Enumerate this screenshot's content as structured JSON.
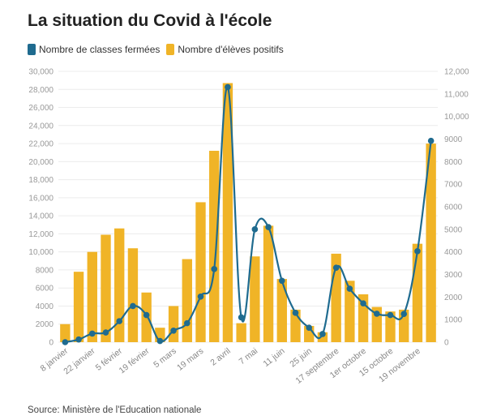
{
  "title": "La situation du Covid à l'école",
  "source": "Source: Ministère de l'Education nationale",
  "colors": {
    "line": "#1f6b8f",
    "bar": "#f0b427"
  },
  "chart_data": {
    "type": "bar",
    "title": "La situation du Covid à l'école",
    "legend_placement": "top-left",
    "grid": true,
    "x_tick_labels": [
      "8 janvier",
      "22 janvier",
      "5 février",
      "19 février",
      "5 mars",
      "19 mars",
      "2 avril",
      "7 mai",
      "11 juin",
      "25 juin",
      "17 septembre",
      "1er octobre",
      "15 octobre",
      "19 novembre"
    ],
    "x_tick_indices": [
      0,
      2,
      4,
      6,
      8,
      10,
      12,
      14,
      16,
      18,
      20,
      22,
      24,
      26
    ],
    "y_left_lim": [
      0,
      30000
    ],
    "y_left_ticks": [
      "0",
      "2000",
      "4000",
      "6000",
      "8000",
      "10,000",
      "12,000",
      "14,000",
      "16,000",
      "18,000",
      "20,000",
      "22,000",
      "24,000",
      "26,000",
      "28,000",
      "30,000"
    ],
    "y_right_lim": [
      0,
      12000
    ],
    "y_right_ticks": [
      "0",
      "1000",
      "2000",
      "3000",
      "4000",
      "5000",
      "6000",
      "7000",
      "8000",
      "9000",
      "10,000",
      "11,000",
      "12,000"
    ],
    "series": [
      {
        "name": "Nombre d'élèves positifs",
        "type": "bar",
        "axis": "left",
        "values": [
          2000,
          7800,
          10000,
          11900,
          12600,
          10400,
          5500,
          1600,
          4000,
          9200,
          15500,
          21200,
          28700,
          2100,
          9500,
          12900,
          7000,
          3600,
          1800,
          1100,
          9800,
          6800,
          5300,
          3900,
          3400,
          3600,
          10900,
          22000
        ]
      },
      {
        "name": "Nombre de classes fermées",
        "type": "line",
        "axis": "right",
        "values": [
          0,
          120,
          380,
          430,
          930,
          1600,
          1200,
          50,
          510,
          840,
          2020,
          3240,
          11300,
          1100,
          5000,
          5100,
          2720,
          1300,
          640,
          360,
          3300,
          2370,
          1720,
          1260,
          1200,
          1250,
          4030,
          8920
        ]
      }
    ]
  }
}
